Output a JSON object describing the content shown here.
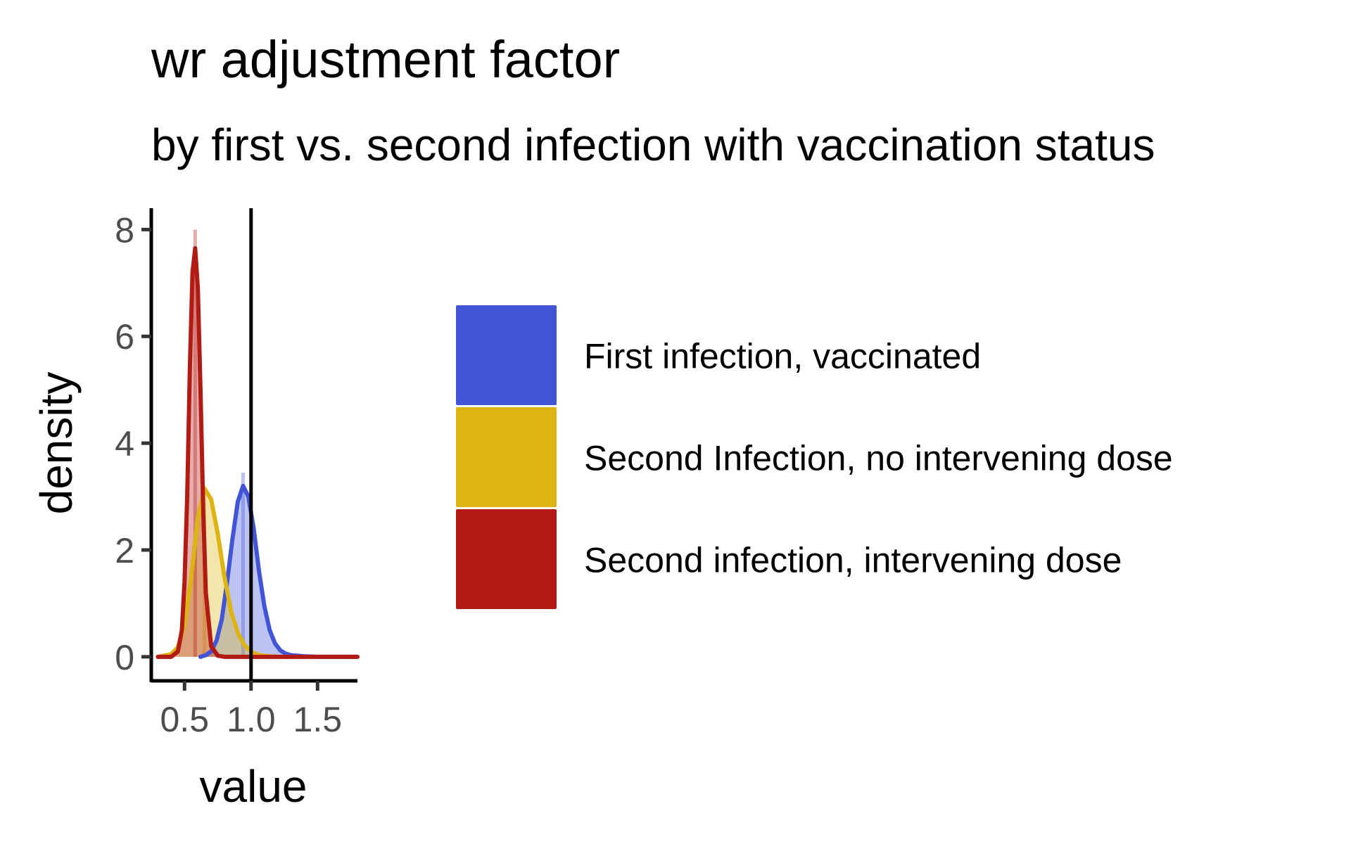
{
  "chart_data": {
    "type": "area",
    "title": "wr adjustment factor",
    "subtitle": "by first vs. second infection with vaccination status",
    "xlabel": "value",
    "ylabel": "density",
    "xlim": [
      0.25,
      1.8
    ],
    "ylim": [
      -0.45,
      8.4
    ],
    "x_ticks": [
      {
        "value": 0.5,
        "label": "0.5"
      },
      {
        "value": 1.0,
        "label": "1.0"
      },
      {
        "value": 1.5,
        "label": "1.5"
      }
    ],
    "y_ticks": [
      {
        "value": 0,
        "label": "0"
      },
      {
        "value": 2,
        "label": "2"
      },
      {
        "value": 4,
        "label": "4"
      },
      {
        "value": 6,
        "label": "6"
      },
      {
        "value": 8,
        "label": "8"
      }
    ],
    "reference_line": {
      "x": 1.0
    },
    "grid": false,
    "legend_position": "right",
    "series": [
      {
        "name": "First infection, vaccinated",
        "color": "#4155d6",
        "x": [
          0.62,
          0.66,
          0.7,
          0.74,
          0.78,
          0.82,
          0.86,
          0.9,
          0.94,
          0.98,
          1.02,
          1.06,
          1.1,
          1.14,
          1.18,
          1.22,
          1.26,
          1.3,
          1.4,
          1.5,
          1.6,
          1.7,
          1.8
        ],
        "y": [
          0.0,
          0.03,
          0.1,
          0.3,
          0.7,
          1.4,
          2.2,
          2.9,
          3.2,
          3.0,
          2.4,
          1.6,
          0.95,
          0.5,
          0.25,
          0.12,
          0.06,
          0.03,
          0.01,
          0.0,
          0.0,
          0.0,
          0.0
        ],
        "histogram_peak": 3.45
      },
      {
        "name": "Second Infection, no intervening dose",
        "color": "#ddb412",
        "x": [
          0.3,
          0.4,
          0.45,
          0.5,
          0.55,
          0.6,
          0.65,
          0.7,
          0.75,
          0.8,
          0.85,
          0.9,
          0.95,
          1.0,
          1.05,
          1.1,
          1.2,
          1.3
        ],
        "y": [
          0.0,
          0.05,
          0.18,
          0.6,
          1.5,
          2.6,
          3.15,
          2.95,
          2.3,
          1.5,
          0.85,
          0.45,
          0.22,
          0.1,
          0.04,
          0.02,
          0.0,
          0.0
        ],
        "histogram_peak": 3.2
      },
      {
        "name": "Second infection, intervening dose",
        "color": "#b21a14",
        "x": [
          0.3,
          0.4,
          0.45,
          0.48,
          0.5,
          0.52,
          0.54,
          0.56,
          0.58,
          0.6,
          0.62,
          0.64,
          0.66,
          0.7,
          0.75,
          0.8,
          1.0,
          1.3,
          1.6,
          1.8
        ],
        "y": [
          0.0,
          0.0,
          0.1,
          0.5,
          1.4,
          3.0,
          5.4,
          7.2,
          7.65,
          6.9,
          5.0,
          2.8,
          1.2,
          0.2,
          0.02,
          0.0,
          0.0,
          0.0,
          0.0,
          0.0
        ],
        "histogram_peak": 8.0
      }
    ]
  }
}
